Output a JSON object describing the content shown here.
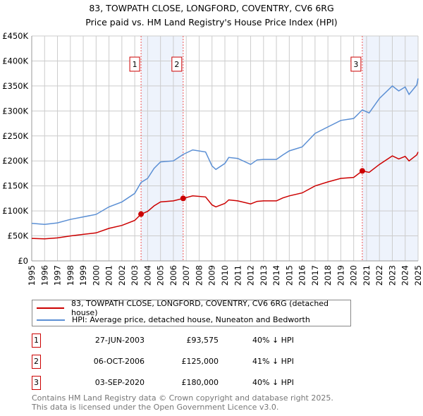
{
  "chart_data": {
    "type": "line",
    "title": "83, TOWPATH CLOSE, LONGFORD, COVENTRY, CV6 6RG",
    "subtitle": "Price paid vs. HM Land Registry's House Price Index (HPI)",
    "xlim": [
      1995,
      2025
    ],
    "ylim": [
      0,
      450000
    ],
    "y_ticks": [
      0,
      50000,
      100000,
      150000,
      200000,
      250000,
      300000,
      350000,
      400000,
      450000
    ],
    "y_tick_labels": [
      "£0",
      "£50K",
      "£100K",
      "£150K",
      "£200K",
      "£250K",
      "£300K",
      "£350K",
      "£400K",
      "£450K"
    ],
    "x_ticks": [
      1995,
      1996,
      1997,
      1998,
      1999,
      2000,
      2001,
      2002,
      2003,
      2004,
      2005,
      2006,
      2007,
      2008,
      2009,
      2010,
      2011,
      2012,
      2013,
      2014,
      2015,
      2016,
      2017,
      2018,
      2019,
      2020,
      2021,
      2022,
      2023,
      2024,
      2025
    ],
    "grid": true,
    "colors": {
      "property": "#cc0000",
      "hpi": "#5b8fd4",
      "shade": "#eef3fc"
    },
    "series": [
      {
        "name": "83, TOWPATH CLOSE, LONGFORD, COVENTRY, CV6 6RG (detached house)",
        "x": [
          1995,
          1996,
          1997,
          1998,
          1999,
          2000,
          2001,
          2002,
          2003,
          2003.49,
          2004,
          2004.5,
          2005,
          2006,
          2006.76,
          2007.5,
          2008.5,
          2009,
          2009.3,
          2010,
          2010.3,
          2011,
          2012,
          2012.5,
          2013,
          2014,
          2014.5,
          2015,
          2016,
          2017,
          2018,
          2019,
          2020,
          2020.67,
          2021.2,
          2022,
          2023,
          2023.5,
          2024,
          2024.3,
          2024.9,
          2025
        ],
        "y": [
          45000,
          44000,
          46000,
          50000,
          53000,
          56000,
          65000,
          71000,
          81000,
          93575,
          99000,
          110000,
          118000,
          120000,
          125000,
          130000,
          128000,
          112000,
          108000,
          115000,
          122000,
          120000,
          114000,
          119000,
          120000,
          120000,
          126000,
          130000,
          136000,
          150000,
          158000,
          165000,
          167000,
          180000,
          177000,
          193000,
          210000,
          204000,
          209000,
          200000,
          212000,
          218000
        ]
      },
      {
        "name": "HPI: Average price, detached house, Nuneaton and Bedworth",
        "x": [
          1995,
          1996,
          1997,
          1998,
          1999,
          2000,
          2001,
          2002,
          2003,
          2003.49,
          2004,
          2004.5,
          2005,
          2006,
          2006.76,
          2007.5,
          2008.5,
          2009,
          2009.3,
          2010,
          2010.3,
          2011,
          2012,
          2012.5,
          2013,
          2014,
          2014.5,
          2015,
          2016,
          2017,
          2018,
          2019,
          2020,
          2020.67,
          2021.2,
          2022,
          2023,
          2023.5,
          2024,
          2024.3,
          2024.9,
          2025
        ],
        "y": [
          75000,
          73000,
          76000,
          83000,
          88000,
          93000,
          108000,
          118000,
          135000,
          157000,
          165000,
          185000,
          198000,
          200000,
          213000,
          222000,
          218000,
          190000,
          183000,
          195000,
          207000,
          205000,
          193000,
          202000,
          203000,
          203000,
          212000,
          220000,
          228000,
          255000,
          268000,
          281000,
          285000,
          302000,
          296000,
          325000,
          350000,
          340000,
          348000,
          333000,
          352000,
          365000
        ]
      }
    ],
    "sales": [
      {
        "label": "1",
        "x": 2003.49,
        "date": "27-JUN-2003",
        "price": 93575,
        "price_label": "£93,575",
        "hpi_label": "40% ↓ HPI"
      },
      {
        "label": "2",
        "x": 2006.76,
        "date": "06-OCT-2006",
        "price": 125000,
        "price_label": "£125,000",
        "hpi_label": "41% ↓ HPI"
      },
      {
        "label": "3",
        "x": 2020.67,
        "date": "03-SEP-2020",
        "price": 180000,
        "price_label": "£180,000",
        "hpi_label": "40% ↓ HPI"
      }
    ],
    "shaded_ranges": [
      [
        2003.49,
        2006.76
      ],
      [
        2020.67,
        2025
      ]
    ],
    "legend_position": "below"
  },
  "footer": {
    "line1": "Contains HM Land Registry data © Crown copyright and database right 2025.",
    "line2": "This data is licensed under the Open Government Licence v3.0."
  }
}
